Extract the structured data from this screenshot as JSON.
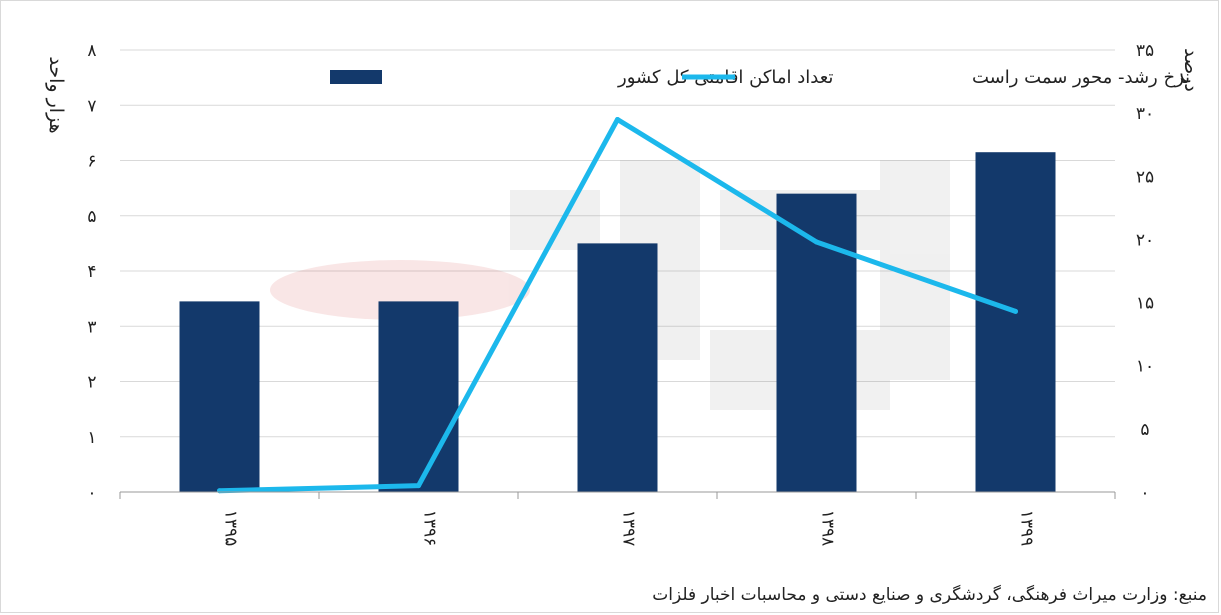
{
  "chart_data": {
    "type": "bar+line",
    "categories": [
      "۱۳۹۵",
      "۱۳۹۶",
      "۱۳۹۷",
      "۱۳۹۸",
      "۱۳۹۹"
    ],
    "series": [
      {
        "name": "تعداد اماکن اقامتی کل کشور",
        "type": "bar",
        "axis": "left",
        "values": [
          3.45,
          3.45,
          4.5,
          5.4,
          6.15
        ],
        "color": "#13396b"
      },
      {
        "name": "نرخ رشد- محور سمت راست",
        "type": "line",
        "axis": "right",
        "values": [
          0.1,
          0.5,
          29.5,
          19.8,
          14.3
        ],
        "color": "#1cb8ec"
      }
    ],
    "ylabel_left": "هزار واحد",
    "ylabel_right": "درصد",
    "ylim_left": [
      0,
      8
    ],
    "ylim_right": [
      0,
      35
    ],
    "yticks_left": [
      "۰",
      "۱",
      "۲",
      "۳",
      "۴",
      "۵",
      "۶",
      "۷",
      "۸"
    ],
    "yticks_right": [
      "۰",
      "۵",
      "۱۰",
      "۱۵",
      "۲۰",
      "۲۵",
      "۳۰",
      "۳۵"
    ],
    "grid": true,
    "legend_position": "top"
  },
  "source_text": "منبع: وزارت میراث فرهنگی، گردشگری و صنایع دستی و محاسبات اخبار فلزات"
}
